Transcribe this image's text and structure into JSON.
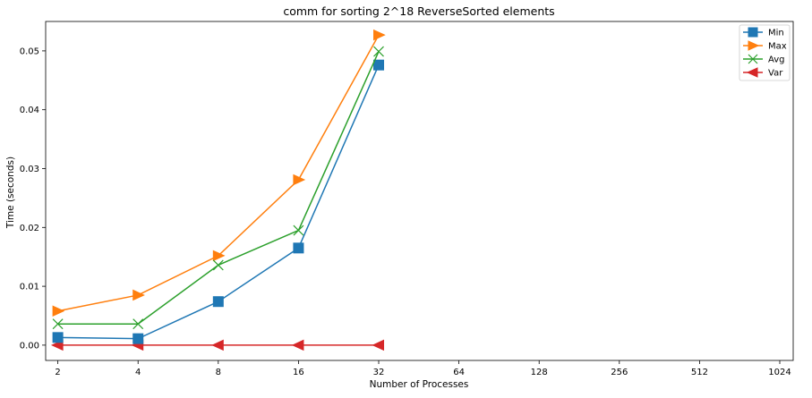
{
  "chart_data": {
    "type": "line",
    "title": "comm for sorting 2^18 ReverseSorted elements",
    "xlabel": "Number of Processes",
    "ylabel": "Time (seconds)",
    "x_scale": "log2",
    "x_ticks": [
      2,
      4,
      8,
      16,
      32,
      64,
      128,
      256,
      512,
      1024
    ],
    "x_tick_labels": [
      "2",
      "4",
      "8",
      "16",
      "32",
      "64",
      "128",
      "256",
      "512",
      "1024"
    ],
    "y_ticks": [
      0.0,
      0.01,
      0.02,
      0.03,
      0.04,
      0.05
    ],
    "y_tick_labels": [
      "0.00",
      "0.01",
      "0.02",
      "0.03",
      "0.04",
      "0.05"
    ],
    "xlim": [
      1.8,
      1150
    ],
    "ylim": [
      -0.0026,
      0.055
    ],
    "grid": false,
    "legend_position": "top-right",
    "x": [
      2,
      4,
      8,
      16,
      32
    ],
    "series": [
      {
        "name": "Min",
        "color": "#1f77b4",
        "marker": "square",
        "values": [
          0.0013,
          0.0011,
          0.0074,
          0.0165,
          0.0476
        ]
      },
      {
        "name": "Max",
        "color": "#ff7f0e",
        "marker": "triangle-right",
        "values": [
          0.0058,
          0.0085,
          0.0152,
          0.0281,
          0.0527
        ]
      },
      {
        "name": "Avg",
        "color": "#2ca02c",
        "marker": "x",
        "values": [
          0.0036,
          0.0036,
          0.0136,
          0.0195,
          0.0499
        ]
      },
      {
        "name": "Var",
        "color": "#d62728",
        "marker": "triangle-left",
        "values": [
          0.0,
          0.0,
          0.0,
          0.0,
          0.0
        ]
      }
    ]
  }
}
